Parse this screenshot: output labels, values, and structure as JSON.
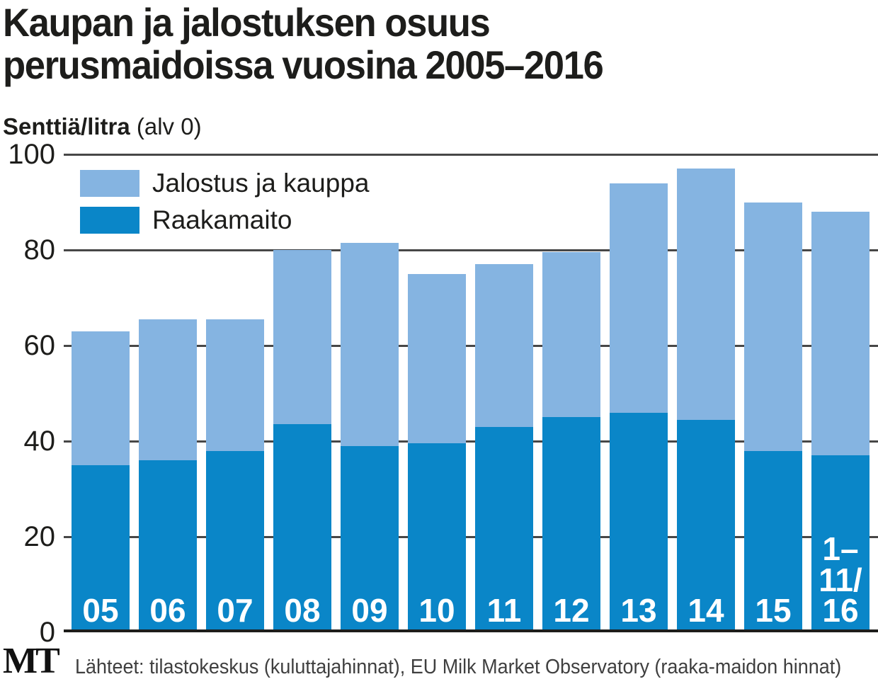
{
  "header": {
    "title_line1": "Kaupan ja jalostuksen osuus",
    "title_line2": "perusmaidoissa vuosina 2005–2016",
    "unit_bold": "Senttiä/litra",
    "unit_rest": " (alv 0)"
  },
  "legend": [
    {
      "label": "Jalostus ja kauppa",
      "color": "#85b4e1"
    },
    {
      "label": "Raakamaito",
      "color": "#0a86c8"
    }
  ],
  "footer": {
    "logo": "MT",
    "source": "Lähteet: tilastokeskus (kuluttajahinnat), EU Milk Market Observatory (raaka-maidon hinnat)"
  },
  "chart_data": {
    "type": "bar",
    "stacked": true,
    "title": "Kaupan ja jalostuksen osuus perusmaidoissa vuosina 2005–2016",
    "ylabel": "Senttiä/litra (alv 0)",
    "xlabel": "",
    "categories": [
      "05",
      "06",
      "07",
      "08",
      "09",
      "10",
      "11",
      "12",
      "13",
      "14",
      "15",
      "1–11/16"
    ],
    "bar_display_labels": [
      "05",
      "06",
      "07",
      "08",
      "09",
      "10",
      "11",
      "12",
      "13",
      "14",
      "15",
      "1–\n11/\n16"
    ],
    "series": [
      {
        "name": "Raakamaito",
        "color": "#0a86c8",
        "values": [
          35,
          36,
          38,
          43.5,
          39,
          39.5,
          43,
          45,
          46,
          44.5,
          38,
          37
        ]
      },
      {
        "name": "Jalostus ja kauppa",
        "color": "#85b4e1",
        "values": [
          28,
          29.5,
          27.5,
          36.5,
          42.5,
          35.5,
          34,
          34.5,
          48,
          52.5,
          52,
          51
        ]
      }
    ],
    "totals": [
      63,
      65.5,
      65.5,
      80,
      81.5,
      75,
      77,
      79.5,
      94,
      97,
      90,
      88
    ],
    "y_axis": {
      "range": [
        0,
        100
      ],
      "ticks": [
        0,
        20,
        40,
        60,
        80,
        100
      ]
    },
    "grid": true,
    "legend_position": "top-left",
    "colors": {
      "raakamaito": "#0a86c8",
      "jalostus_kauppa": "#85b4e1",
      "gridline": "#474747",
      "axis_line": "#1d1d1b",
      "text": "#1d1d1b",
      "bar_label_text": "#ffffff"
    }
  }
}
